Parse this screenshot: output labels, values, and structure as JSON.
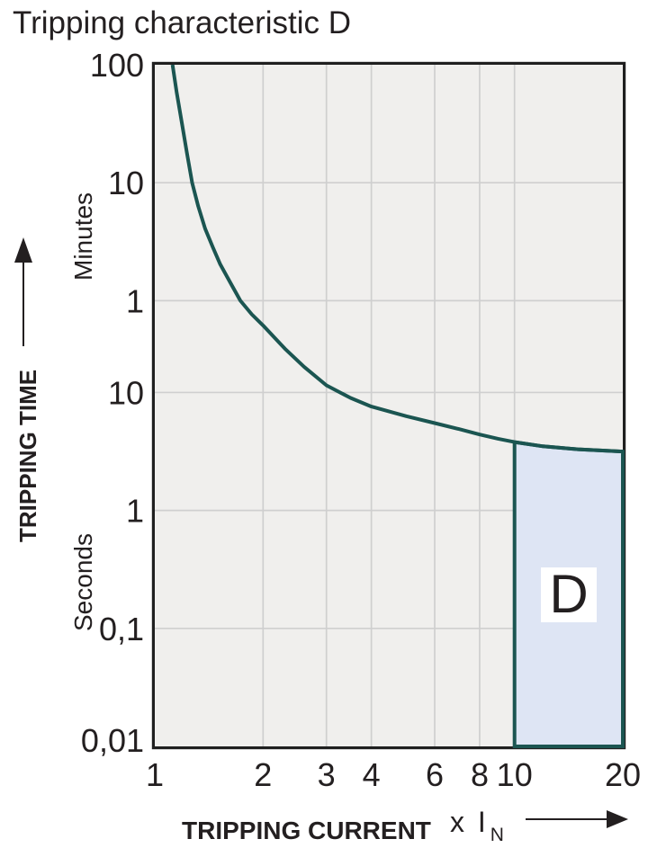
{
  "title": "Tripping characteristic D",
  "y_axis": {
    "title": "TRIPPING TIME",
    "unit_top": "Minutes",
    "unit_bottom": "Seconds"
  },
  "x_axis": {
    "title": "TRIPPING CURRENT",
    "unit_prefix": "x I",
    "unit_sub": "N"
  },
  "colors": {
    "curve": "#1b5551",
    "region_fill": "#dee5f4",
    "plot_background": "#f0efed",
    "gridline": "#cfcfcf",
    "plot_border": "#1f1f1f",
    "text": "#231f20",
    "region_label_box": "#ffffff"
  },
  "chart_data": {
    "type": "line",
    "title": "Tripping characteristic D",
    "xlabel": "TRIPPING CURRENT (x IN)",
    "ylabel": "TRIPPING TIME (Minutes / Seconds)",
    "x_scale": "log",
    "y_scale": "log",
    "xlim": [
      1,
      20
    ],
    "ylim_seconds": [
      0.01,
      6000
    ],
    "grid": true,
    "x_gridlines": [
      2,
      3,
      4,
      6,
      8,
      10
    ],
    "y_gridlines_seconds": [
      600,
      60,
      10,
      1,
      0.1
    ],
    "x_ticks": [
      {
        "value": 1,
        "label": "1"
      },
      {
        "value": 2,
        "label": "2"
      },
      {
        "value": 3,
        "label": "3"
      },
      {
        "value": 4,
        "label": "4"
      },
      {
        "value": 6,
        "label": "6"
      },
      {
        "value": 8,
        "label": "8"
      },
      {
        "value": 10,
        "label": "10"
      },
      {
        "value": 20,
        "label": "20"
      }
    ],
    "y_ticks": [
      {
        "seconds": 6000,
        "label": "100",
        "unit": "Minutes"
      },
      {
        "seconds": 600,
        "label": "10",
        "unit": "Minutes"
      },
      {
        "seconds": 60,
        "label": "1",
        "unit": "Minutes"
      },
      {
        "seconds": 10,
        "label": "10",
        "unit": "Seconds"
      },
      {
        "seconds": 1,
        "label": "1",
        "unit": "Seconds"
      },
      {
        "seconds": 0.1,
        "label": "0,1",
        "unit": "Seconds"
      },
      {
        "seconds": 0.01,
        "label": "0,01",
        "unit": "Seconds"
      }
    ],
    "series": [
      {
        "name": "thermal trip curve",
        "points_x_multiple_of_In_vs_seconds": [
          [
            1.12,
            6000
          ],
          [
            1.15,
            3500
          ],
          [
            1.19,
            1900
          ],
          [
            1.23,
            1050
          ],
          [
            1.27,
            600
          ],
          [
            1.32,
            380
          ],
          [
            1.38,
            245
          ],
          [
            1.45,
            170
          ],
          [
            1.52,
            122
          ],
          [
            1.62,
            86
          ],
          [
            1.73,
            60
          ],
          [
            1.86,
            46
          ],
          [
            2.0,
            37
          ],
          [
            2.3,
            23.5
          ],
          [
            2.6,
            16.5
          ],
          [
            3.0,
            11.5
          ],
          [
            3.5,
            9.0
          ],
          [
            4.0,
            7.6
          ],
          [
            5.0,
            6.3
          ],
          [
            6.0,
            5.5
          ],
          [
            7.0,
            4.9
          ],
          [
            8.0,
            4.4
          ],
          [
            9.0,
            4.05
          ],
          [
            10.0,
            3.8
          ],
          [
            12.0,
            3.5
          ],
          [
            15.0,
            3.3
          ],
          [
            20.0,
            3.16
          ]
        ]
      }
    ],
    "region": {
      "label": "D",
      "x_range": [
        10,
        20
      ],
      "t_bottom_seconds": 0.01,
      "top_boundary": "curve"
    }
  }
}
